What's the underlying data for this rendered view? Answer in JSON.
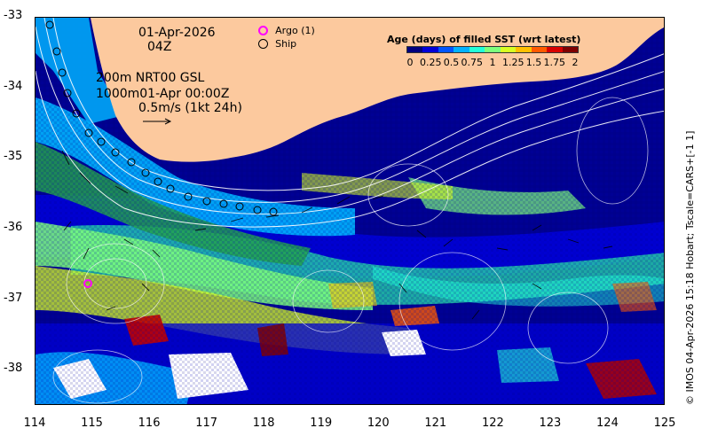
{
  "header": {
    "date_line": "01-Apr-2026",
    "time_line": "04Z",
    "contour_line1": "200m  NRT00 GSL",
    "contour_line2": "1000m01-Apr 00:00Z",
    "vector_scale": "0.5m/s (1kt 24h)"
  },
  "legend": {
    "argo_label": "Argo (1)",
    "argo_color": "#ff00ff",
    "ship_label": "Ship",
    "colorbar_title": "Age (days) of filled SST (wrt latest)",
    "colorbar_labels": [
      "0",
      "0.25",
      "0.5",
      "0.75",
      "1",
      "1.25",
      "1.5",
      "1.75",
      "2"
    ],
    "colorbar_colors": [
      "#00007f",
      "#0000d8",
      "#0055ff",
      "#00b2ff",
      "#22ffd9",
      "#7dff7d",
      "#d9ff22",
      "#ffc000",
      "#ff5a00",
      "#d80000",
      "#7f0000"
    ]
  },
  "axes": {
    "x_ticks": [
      "114",
      "115",
      "116",
      "117",
      "118",
      "119",
      "120",
      "121",
      "122",
      "123",
      "124",
      "125"
    ],
    "y_ticks": [
      "-33",
      "-34",
      "-35",
      "-36",
      "-37",
      "-38"
    ],
    "lon_range": [
      114,
      125
    ],
    "lat_range": [
      -38.5,
      -33
    ]
  },
  "colors": {
    "land": "#fcc99e",
    "argo_marker": "#ff00ff"
  },
  "credit": "© IMOS 04-Apr-2026 15:18 Hobart; Tscale=CARS+[-1 1]"
}
